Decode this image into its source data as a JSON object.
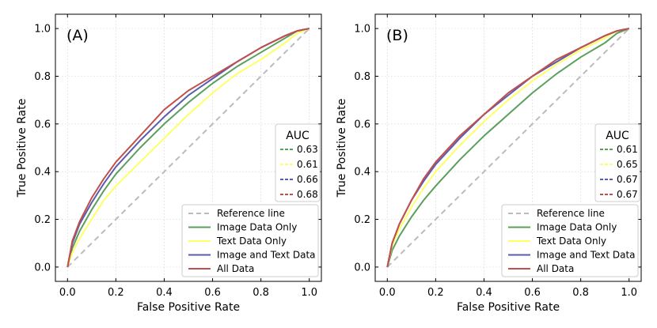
{
  "chart_data": [
    {
      "type": "line",
      "panel_label": "(A)",
      "xlabel": "False Positive Rate",
      "ylabel": "True Positive Rate",
      "xlim": [
        0,
        1
      ],
      "ylim": [
        0,
        1
      ],
      "ticks": [
        "0.0",
        "0.2",
        "0.4",
        "0.6",
        "0.8",
        "1.0"
      ],
      "grid": true,
      "legend_position": "lower-right",
      "auc_legend_position": "right",
      "auc_title": "AUC",
      "reference": {
        "name": "Reference line",
        "color": "#bbbbbb",
        "x": [
          0,
          1
        ],
        "y": [
          0,
          1
        ]
      },
      "series": [
        {
          "name": "Image Data Only",
          "auc": "0.63",
          "color": "#5b9f5c",
          "x": [
            0,
            0.02,
            0.05,
            0.1,
            0.15,
            0.2,
            0.3,
            0.4,
            0.5,
            0.6,
            0.7,
            0.8,
            0.9,
            0.95,
            1.0
          ],
          "y": [
            0,
            0.08,
            0.15,
            0.24,
            0.32,
            0.39,
            0.5,
            0.6,
            0.69,
            0.77,
            0.84,
            0.9,
            0.96,
            0.99,
            1.0
          ]
        },
        {
          "name": "Text Data Only",
          "auc": "0.61",
          "color": "#ffff66",
          "x": [
            0,
            0.02,
            0.05,
            0.1,
            0.15,
            0.2,
            0.3,
            0.4,
            0.5,
            0.6,
            0.7,
            0.8,
            0.9,
            0.95,
            1.0
          ],
          "y": [
            0,
            0.06,
            0.12,
            0.2,
            0.28,
            0.34,
            0.44,
            0.54,
            0.64,
            0.73,
            0.81,
            0.87,
            0.94,
            0.98,
            1.0
          ]
        },
        {
          "name": "Image and Text Data",
          "auc": "0.66",
          "color": "#5b5bb0",
          "x": [
            0,
            0.02,
            0.05,
            0.1,
            0.15,
            0.2,
            0.3,
            0.4,
            0.5,
            0.6,
            0.7,
            0.8,
            0.9,
            0.95,
            1.0
          ],
          "y": [
            0,
            0.1,
            0.18,
            0.27,
            0.35,
            0.42,
            0.53,
            0.63,
            0.72,
            0.79,
            0.86,
            0.92,
            0.97,
            0.99,
            1.0
          ]
        },
        {
          "name": "All Data",
          "auc": "0.68",
          "color": "#c0504d",
          "x": [
            0,
            0.02,
            0.05,
            0.1,
            0.15,
            0.2,
            0.3,
            0.4,
            0.5,
            0.6,
            0.7,
            0.8,
            0.9,
            0.95,
            1.0
          ],
          "y": [
            0,
            0.11,
            0.19,
            0.29,
            0.37,
            0.44,
            0.55,
            0.66,
            0.74,
            0.8,
            0.86,
            0.92,
            0.97,
            0.99,
            1.0
          ]
        }
      ]
    },
    {
      "type": "line",
      "panel_label": "(B)",
      "xlabel": "False Positive Rate",
      "ylabel": "True Positive Rate",
      "xlim": [
        0,
        1
      ],
      "ylim": [
        0,
        1
      ],
      "ticks": [
        "0.0",
        "0.2",
        "0.4",
        "0.6",
        "0.8",
        "1.0"
      ],
      "grid": true,
      "legend_position": "lower-right",
      "auc_legend_position": "right",
      "auc_title": "AUC",
      "reference": {
        "name": "Reference line",
        "color": "#bbbbbb",
        "x": [
          0,
          1
        ],
        "y": [
          0,
          1
        ]
      },
      "series": [
        {
          "name": "Image Data Only",
          "auc": "0.61",
          "color": "#5b9f5c",
          "x": [
            0,
            0.02,
            0.05,
            0.1,
            0.15,
            0.2,
            0.3,
            0.4,
            0.5,
            0.6,
            0.7,
            0.8,
            0.9,
            0.95,
            1.0
          ],
          "y": [
            0,
            0.07,
            0.13,
            0.21,
            0.28,
            0.34,
            0.45,
            0.55,
            0.64,
            0.73,
            0.81,
            0.88,
            0.94,
            0.98,
            1.0
          ]
        },
        {
          "name": "Text Data Only",
          "auc": "0.65",
          "color": "#ffff66",
          "x": [
            0,
            0.02,
            0.05,
            0.1,
            0.15,
            0.2,
            0.3,
            0.4,
            0.5,
            0.6,
            0.7,
            0.8,
            0.9,
            0.95,
            1.0
          ],
          "y": [
            0,
            0.09,
            0.16,
            0.25,
            0.33,
            0.4,
            0.51,
            0.61,
            0.7,
            0.78,
            0.85,
            0.91,
            0.96,
            0.99,
            1.0
          ]
        },
        {
          "name": "Image and Text Data",
          "auc": "0.67",
          "color": "#5b5bb0",
          "x": [
            0,
            0.02,
            0.05,
            0.1,
            0.15,
            0.2,
            0.3,
            0.4,
            0.5,
            0.6,
            0.7,
            0.8,
            0.9,
            0.95,
            1.0
          ],
          "y": [
            0,
            0.1,
            0.18,
            0.28,
            0.36,
            0.43,
            0.54,
            0.64,
            0.72,
            0.8,
            0.86,
            0.92,
            0.97,
            0.99,
            1.0
          ]
        },
        {
          "name": "All Data",
          "auc": "0.67",
          "color": "#c0504d",
          "x": [
            0,
            0.02,
            0.05,
            0.1,
            0.15,
            0.2,
            0.3,
            0.4,
            0.5,
            0.6,
            0.7,
            0.8,
            0.9,
            0.95,
            1.0
          ],
          "y": [
            0,
            0.1,
            0.18,
            0.28,
            0.37,
            0.44,
            0.55,
            0.64,
            0.73,
            0.8,
            0.87,
            0.92,
            0.97,
            0.99,
            1.0
          ]
        }
      ]
    }
  ]
}
